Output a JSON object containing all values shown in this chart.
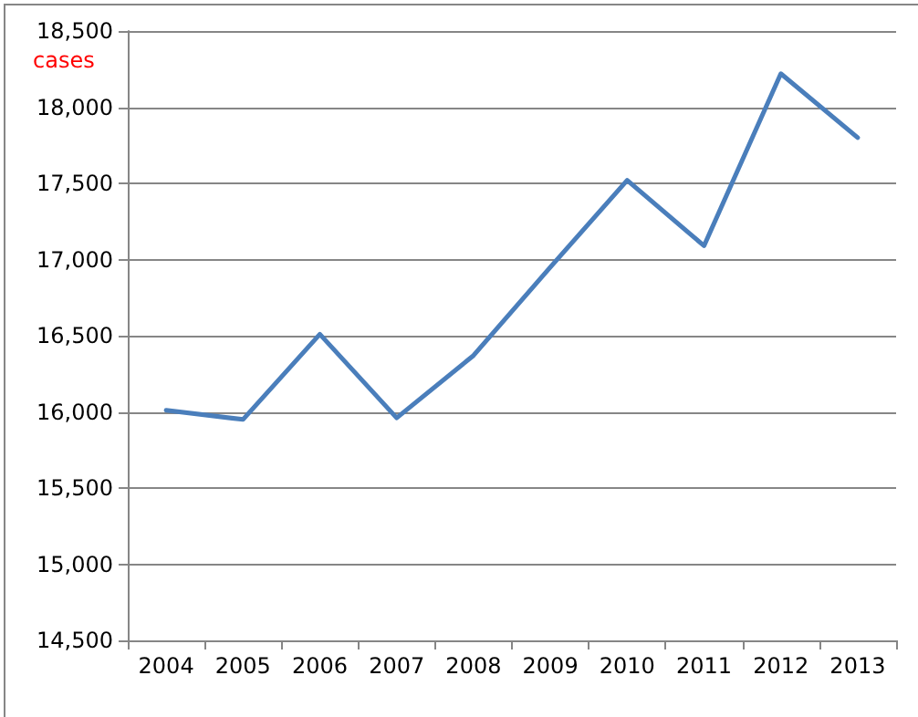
{
  "chart_data": {
    "type": "line",
    "ylabel": "cases",
    "categories": [
      "2004",
      "2005",
      "2006",
      "2007",
      "2008",
      "2009",
      "2010",
      "2011",
      "2012",
      "2013"
    ],
    "series": [
      {
        "color": "#4a7ebb",
        "values": [
          16010,
          15950,
          16510,
          15960,
          16370,
          16950,
          17520,
          17090,
          18220,
          17800
        ]
      }
    ],
    "ylim": [
      14500,
      18500
    ],
    "yticks": [
      {
        "value": 14500,
        "label": "14,500"
      },
      {
        "value": 15000,
        "label": "15,000"
      },
      {
        "value": 15500,
        "label": "15,500"
      },
      {
        "value": 16000,
        "label": "16,000"
      },
      {
        "value": 16500,
        "label": "16,500"
      },
      {
        "value": 17000,
        "label": "17,000"
      },
      {
        "value": 17500,
        "label": "17,500"
      },
      {
        "value": 18000,
        "label": "18,000"
      },
      {
        "value": 18500,
        "label": "18,500"
      }
    ],
    "grid": "y",
    "marker": "none",
    "line_style": "solid"
  }
}
